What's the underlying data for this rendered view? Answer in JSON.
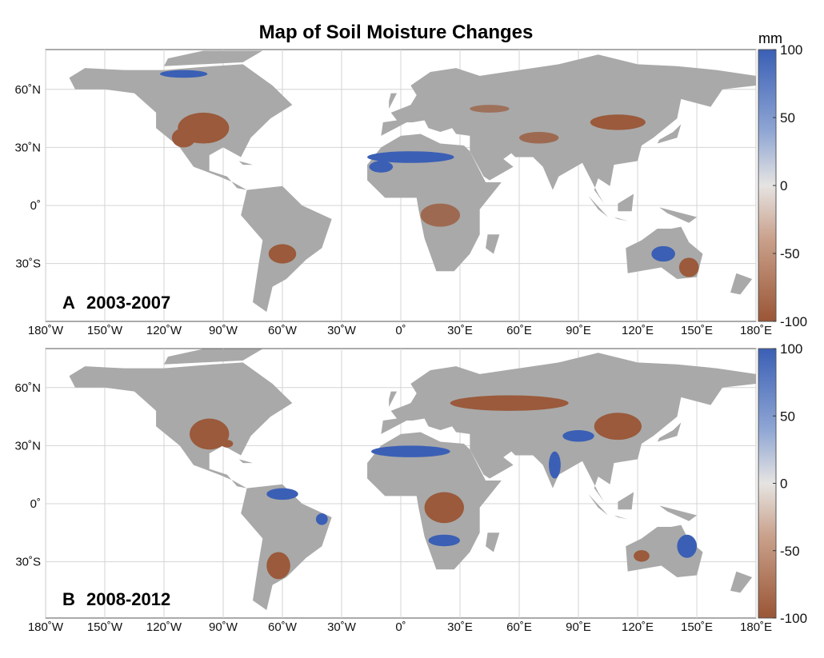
{
  "title": "Map of Soil Moisture Changes",
  "colorbar": {
    "unit": "mm",
    "lim": [
      -100,
      100
    ],
    "ticks": [
      100,
      50,
      0,
      -50,
      -100
    ]
  },
  "longitude_ticks": [
    {
      "value": -180,
      "label": "180˚W"
    },
    {
      "value": -150,
      "label": "150˚W"
    },
    {
      "value": -120,
      "label": "120˚W"
    },
    {
      "value": -90,
      "label": "90˚W"
    },
    {
      "value": -60,
      "label": "60˚W"
    },
    {
      "value": -30,
      "label": "30˚W"
    },
    {
      "value": 0,
      "label": "0˚"
    },
    {
      "value": 30,
      "label": "30˚E"
    },
    {
      "value": 60,
      "label": "60˚E"
    },
    {
      "value": 90,
      "label": "90˚E"
    },
    {
      "value": 120,
      "label": "120˚E"
    },
    {
      "value": 150,
      "label": "150˚E"
    },
    {
      "value": 180,
      "label": "180˚E"
    }
  ],
  "latitude_ticks": [
    {
      "value": 60,
      "label": "60˚N"
    },
    {
      "value": 30,
      "label": "30˚N"
    },
    {
      "value": 0,
      "label": "0˚"
    },
    {
      "value": -30,
      "label": "30˚S"
    }
  ],
  "panels": [
    {
      "label": "A",
      "period": "2003-2007"
    },
    {
      "label": "B",
      "period": "2008-2012"
    }
  ]
}
